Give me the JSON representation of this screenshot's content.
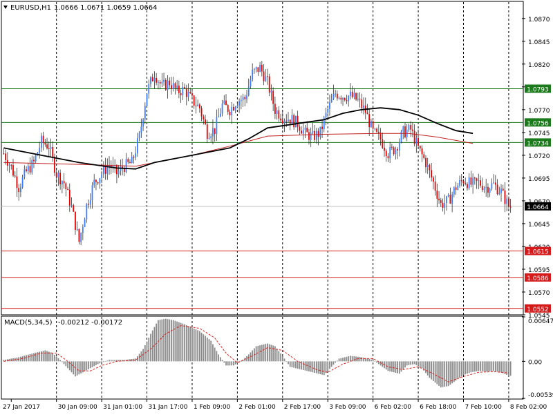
{
  "header": {
    "symbol_label": "EURUSD,H1",
    "ohlc_label": "1.0666 1.0671 1.0659 1.0664"
  },
  "macd": {
    "label": "MACD(5,34,5)",
    "values_label": "-0.00212 -0.00172",
    "ticks": [
      "0.00647",
      "0.00",
      "-0.00539"
    ],
    "tick_values": [
      0.00647,
      0.0,
      -0.00539
    ]
  },
  "colors": {
    "bull": "#3b7dff",
    "bear": "#e60000",
    "wick": "#333333",
    "ma_fast": "#000000",
    "ma_slow": "#c42020",
    "resistance": "#1b7a1b",
    "support": "#d41a1a",
    "current": "#bdbdbd",
    "macd_hist": "#8a8a8a",
    "macd_signal": "#e02020"
  },
  "chart_data": [
    {
      "type": "candlestick",
      "symbol": "EURUSD",
      "timeframe": "H1",
      "ylim": [
        1.0545,
        1.0888
      ],
      "y_ticks": [
        1.087,
        1.0845,
        1.082,
        1.0795,
        1.077,
        1.0745,
        1.072,
        1.0695,
        1.067,
        1.0645,
        1.062,
        1.0595,
        1.057,
        1.0545
      ],
      "y_tick_labels": [
        "1.0870",
        "1.0845",
        "1.0820",
        "1.0795",
        "1.0770",
        "1.0745",
        "1.0720",
        "1.0695",
        "1.0670",
        "1.0645",
        "1.0620",
        "1.0595",
        "1.0570",
        "1.0545"
      ],
      "x_labels": [
        "27 Jan 2017",
        "30 Jan 09:00",
        "31 Jan 01:00",
        "31 Jan 17:00",
        "1 Feb 09:00",
        "2 Feb 01:00",
        "2 Feb 17:00",
        "3 Feb 09:00",
        "6 Feb 02:00",
        "6 Feb 18:00",
        "7 Feb 10:00",
        "8 Feb 02:00"
      ],
      "horizontal_levels": [
        {
          "value": 1.0793,
          "label": "1.0793",
          "kind": "resistance"
        },
        {
          "value": 1.0756,
          "label": "1.0756",
          "kind": "resistance"
        },
        {
          "value": 1.0734,
          "label": "1.0734",
          "kind": "resistance"
        },
        {
          "value": 1.0615,
          "label": "1.0615",
          "kind": "support"
        },
        {
          "value": 1.0586,
          "label": "1.0586",
          "kind": "support"
        },
        {
          "value": 1.0552,
          "label": "1.0552",
          "kind": "support"
        }
      ],
      "current_price": {
        "value": 1.0664,
        "label": "1.0664"
      },
      "close_path": [
        [
          0,
          1.0722
        ],
        [
          4,
          1.0707
        ],
        [
          8,
          1.0685
        ],
        [
          12,
          1.0702
        ],
        [
          16,
          1.0712
        ],
        [
          20,
          1.0735
        ],
        [
          24,
          1.073
        ],
        [
          28,
          1.07
        ],
        [
          32,
          1.069
        ],
        [
          36,
          1.0663
        ],
        [
          40,
          1.0625
        ],
        [
          44,
          1.0665
        ],
        [
          48,
          1.069
        ],
        [
          52,
          1.07
        ],
        [
          56,
          1.071
        ],
        [
          60,
          1.07
        ],
        [
          64,
          1.0708
        ],
        [
          68,
          1.0712
        ],
        [
          72,
          1.074
        ],
        [
          76,
          1.079
        ],
        [
          80,
          1.081
        ],
        [
          84,
          1.0795
        ],
        [
          88,
          1.08
        ],
        [
          92,
          1.079
        ],
        [
          96,
          1.0792
        ],
        [
          100,
          1.078
        ],
        [
          104,
          1.0772
        ],
        [
          108,
          1.0745
        ],
        [
          112,
          1.0748
        ],
        [
          116,
          1.0775
        ],
        [
          120,
          1.077
        ],
        [
          124,
          1.078
        ],
        [
          128,
          1.0782
        ],
        [
          132,
          1.081
        ],
        [
          136,
          1.0816
        ],
        [
          140,
          1.08
        ],
        [
          144,
          1.077
        ],
        [
          148,
          1.0762
        ],
        [
          152,
          1.076
        ],
        [
          156,
          1.0755
        ],
        [
          160,
          1.0744
        ],
        [
          164,
          1.074
        ],
        [
          168,
          1.0745
        ],
        [
          172,
          1.077
        ],
        [
          176,
          1.0788
        ],
        [
          180,
          1.0785
        ],
        [
          184,
          1.0785
        ],
        [
          188,
          1.078
        ],
        [
          192,
          1.0768
        ],
        [
          196,
          1.0745
        ],
        [
          200,
          1.0738
        ],
        [
          204,
          1.0722
        ],
        [
          208,
          1.0728
        ],
        [
          212,
          1.0745
        ],
        [
          216,
          1.0748
        ],
        [
          220,
          1.0728
        ],
        [
          224,
          1.0712
        ],
        [
          228,
          1.069
        ],
        [
          232,
          1.0666
        ],
        [
          236,
          1.067
        ],
        [
          240,
          1.0685
        ],
        [
          244,
          1.0693
        ],
        [
          248,
          1.0688
        ],
        [
          252,
          1.069
        ],
        [
          256,
          1.0685
        ],
        [
          260,
          1.0688
        ],
        [
          264,
          1.068
        ],
        [
          268,
          1.0664
        ]
      ],
      "ma_fast": [
        [
          0,
          1.0728
        ],
        [
          20,
          1.072
        ],
        [
          40,
          1.0712
        ],
        [
          60,
          1.0706
        ],
        [
          70,
          1.0705
        ],
        [
          80,
          1.0712
        ],
        [
          100,
          1.072
        ],
        [
          120,
          1.0728
        ],
        [
          130,
          1.0738
        ],
        [
          140,
          1.075
        ],
        [
          160,
          1.0756
        ],
        [
          170,
          1.0759
        ],
        [
          180,
          1.0766
        ],
        [
          190,
          1.077
        ],
        [
          200,
          1.0772
        ],
        [
          210,
          1.077
        ],
        [
          220,
          1.0764
        ],
        [
          230,
          1.0755
        ],
        [
          240,
          1.0747
        ],
        [
          249,
          1.0744
        ]
      ],
      "ma_slow": [
        [
          0,
          1.0712
        ],
        [
          40,
          1.071
        ],
        [
          70,
          1.0708
        ],
        [
          100,
          1.072
        ],
        [
          120,
          1.073
        ],
        [
          140,
          1.0741
        ],
        [
          170,
          1.0743
        ],
        [
          200,
          1.0744
        ],
        [
          215,
          1.0744
        ],
        [
          230,
          1.074
        ],
        [
          249,
          1.0733
        ]
      ]
    },
    {
      "type": "bar",
      "name": "MACD",
      "ylim": [
        -0.00539,
        0.00647
      ],
      "histogram": [
        [
          0,
          0.0002
        ],
        [
          8,
          0.0006
        ],
        [
          16,
          0.0012
        ],
        [
          22,
          0.0016
        ],
        [
          26,
          0.0012
        ],
        [
          30,
          0.0002
        ],
        [
          34,
          -0.001
        ],
        [
          38,
          -0.0022
        ],
        [
          42,
          -0.0016
        ],
        [
          46,
          -0.001
        ],
        [
          50,
          -0.0004
        ],
        [
          56,
          0.0002
        ],
        [
          64,
          0.0002
        ],
        [
          70,
          0.0004
        ],
        [
          74,
          0.0018
        ],
        [
          78,
          0.004
        ],
        [
          82,
          0.006
        ],
        [
          86,
          0.0062
        ],
        [
          90,
          0.006
        ],
        [
          96,
          0.0054
        ],
        [
          104,
          0.0044
        ],
        [
          110,
          0.003
        ],
        [
          114,
          0.001
        ],
        [
          118,
          -0.0006
        ],
        [
          122,
          -0.0006
        ],
        [
          126,
          0.0
        ],
        [
          130,
          0.001
        ],
        [
          134,
          0.0022
        ],
        [
          140,
          0.0026
        ],
        [
          144,
          0.0022
        ],
        [
          148,
          0.0008
        ],
        [
          152,
          -0.0008
        ],
        [
          158,
          -0.0012
        ],
        [
          164,
          -0.0016
        ],
        [
          170,
          -0.002
        ],
        [
          174,
          -0.0008
        ],
        [
          178,
          0.0004
        ],
        [
          184,
          0.0008
        ],
        [
          190,
          0.0006
        ],
        [
          196,
          0.0002
        ],
        [
          200,
          -0.0006
        ],
        [
          204,
          -0.0014
        ],
        [
          210,
          -0.0018
        ],
        [
          214,
          -0.0006
        ],
        [
          218,
          -0.0004
        ],
        [
          222,
          -0.001
        ],
        [
          226,
          -0.0024
        ],
        [
          232,
          -0.0038
        ],
        [
          236,
          -0.0036
        ],
        [
          240,
          -0.0028
        ],
        [
          244,
          -0.002
        ],
        [
          248,
          -0.0016
        ],
        [
          252,
          -0.0014
        ],
        [
          256,
          -0.0015
        ],
        [
          260,
          -0.0014
        ],
        [
          264,
          -0.0016
        ],
        [
          268,
          -0.0021
        ]
      ],
      "signal": [
        [
          0,
          0.0
        ],
        [
          10,
          0.0004
        ],
        [
          20,
          0.0012
        ],
        [
          28,
          0.0012
        ],
        [
          34,
          0.0
        ],
        [
          40,
          -0.0014
        ],
        [
          46,
          -0.0014
        ],
        [
          52,
          -0.0006
        ],
        [
          60,
          0.0
        ],
        [
          70,
          0.0002
        ],
        [
          78,
          0.0018
        ],
        [
          86,
          0.004
        ],
        [
          94,
          0.0052
        ],
        [
          104,
          0.0048
        ],
        [
          112,
          0.0034
        ],
        [
          118,
          0.0012
        ],
        [
          124,
          -0.0002
        ],
        [
          132,
          0.0008
        ],
        [
          140,
          0.002
        ],
        [
          148,
          0.0016
        ],
        [
          156,
          0.0
        ],
        [
          166,
          -0.0012
        ],
        [
          172,
          -0.0016
        ],
        [
          180,
          -0.0004
        ],
        [
          188,
          0.0004
        ],
        [
          196,
          0.0004
        ],
        [
          204,
          -0.0008
        ],
        [
          212,
          -0.0012
        ],
        [
          220,
          -0.0008
        ],
        [
          228,
          -0.0018
        ],
        [
          236,
          -0.003
        ],
        [
          244,
          -0.0022
        ],
        [
          252,
          -0.0016
        ],
        [
          260,
          -0.0015
        ],
        [
          268,
          -0.0017
        ]
      ]
    }
  ]
}
